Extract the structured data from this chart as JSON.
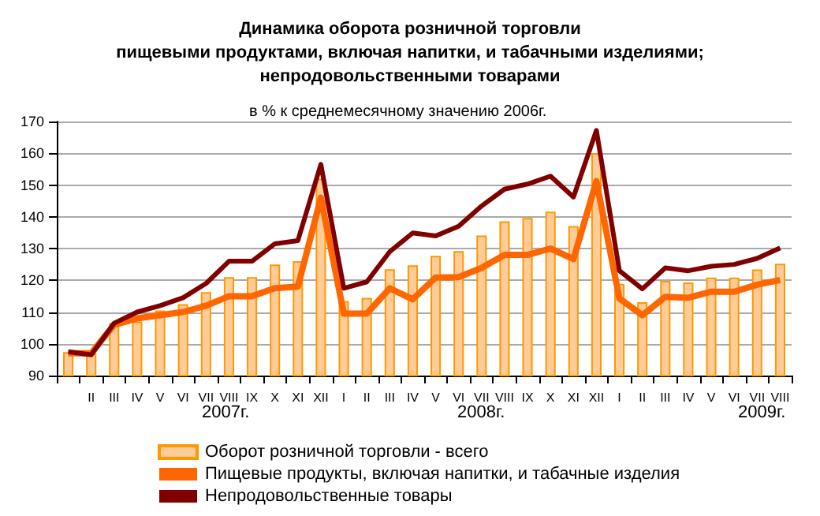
{
  "chart_data": {
    "type": "bar",
    "title": "Динамика оборота розничной торговли\nпищевыми продуктами, включая напитки, и табачными изделиями;\nнепродовольственными товарами",
    "subtitle": "в % к среднемесячному значению 2006г.",
    "categories": [
      null,
      "II",
      "III",
      "IV",
      "V",
      "VI",
      "VII",
      "VIII",
      "IX",
      "X",
      "XI",
      "XII",
      "I",
      "II",
      "III",
      "IV",
      "V",
      "VI",
      "VII",
      "VIII",
      "IX",
      "X",
      "XI",
      "XII",
      "I",
      "II",
      "III",
      "IV",
      "V",
      "VI",
      "VII",
      "VIII"
    ],
    "series": [
      {
        "name": "Оборот розничной торговли - всего",
        "color": "#ffcc99",
        "values": [
          97.4,
          97,
          106.5,
          107,
          110.5,
          112.5,
          116.3,
          121,
          121,
          125,
          126,
          152,
          113.5,
          114.5,
          123.5,
          124.7,
          127.7,
          129.2,
          134.1,
          138.6,
          139.6,
          141.6,
          137.1,
          160,
          118.9,
          113.1,
          119.8,
          119.3,
          120.9,
          120.9,
          123.4,
          125.2
        ]
      },
      {
        "name": "Пищевые продукты, включая напитки, и табачные изделия",
        "type": "line",
        "color": "#ff6600",
        "values": [
          97,
          97,
          106,
          108,
          109,
          110,
          112,
          115,
          115,
          117.5,
          118,
          146,
          109.5,
          109.5,
          117.5,
          114,
          120.9,
          121,
          123.9,
          128,
          128,
          130,
          126.7,
          151.2,
          114.3,
          109,
          114.8,
          114.5,
          116.4,
          116.4,
          118.6,
          120.1
        ]
      },
      {
        "name": "Непродовольственные товары",
        "type": "line",
        "color": "#800000",
        "values": [
          97.5,
          96.5,
          106.5,
          110,
          112,
          114.5,
          119,
          126,
          126,
          131.5,
          132.5,
          156.5,
          117.5,
          119.5,
          129,
          134.9,
          134,
          137,
          143.4,
          148.7,
          150.3,
          152.8,
          146.2,
          167.2,
          123,
          117.3,
          123.9,
          123,
          124.4,
          125,
          126.9,
          130.2
        ]
      }
    ],
    "ylim": [
      90,
      170
    ],
    "yticks": [
      90,
      100,
      110,
      120,
      130,
      140,
      150,
      160,
      170
    ],
    "grid": "y",
    "legend": "bottom",
    "marker": "none",
    "line_style": "solid",
    "annotations": [
      "2007г.",
      "2008г.",
      "2009г."
    ]
  }
}
